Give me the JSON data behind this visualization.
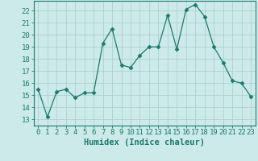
{
  "x": [
    0,
    1,
    2,
    3,
    4,
    5,
    6,
    7,
    8,
    9,
    10,
    11,
    12,
    13,
    14,
    15,
    16,
    17,
    18,
    19,
    20,
    21,
    22,
    23
  ],
  "y": [
    15.5,
    13.2,
    15.3,
    15.5,
    14.8,
    15.2,
    15.2,
    19.3,
    20.5,
    17.5,
    17.3,
    18.3,
    19.0,
    19.0,
    21.6,
    18.8,
    22.1,
    22.5,
    21.5,
    19.0,
    17.7,
    16.2,
    16.0,
    14.9
  ],
  "line_color": "#1a7a6e",
  "marker": "D",
  "marker_size": 2.5,
  "bg_color": "#cdeaea",
  "grid_color": "#aed0d0",
  "xlabel": "Humidex (Indice chaleur)",
  "xlim": [
    -0.5,
    23.5
  ],
  "ylim": [
    12.5,
    22.8
  ],
  "yticks": [
    13,
    14,
    15,
    16,
    17,
    18,
    19,
    20,
    21,
    22
  ],
  "xticks": [
    0,
    1,
    2,
    3,
    4,
    5,
    6,
    7,
    8,
    9,
    10,
    11,
    12,
    13,
    14,
    15,
    16,
    17,
    18,
    19,
    20,
    21,
    22,
    23
  ],
  "tick_color": "#1a7a6e",
  "label_color": "#1a7a6e",
  "spine_color": "#1a7a6e",
  "xlabel_fontsize": 7.5,
  "tick_fontsize": 6.5
}
